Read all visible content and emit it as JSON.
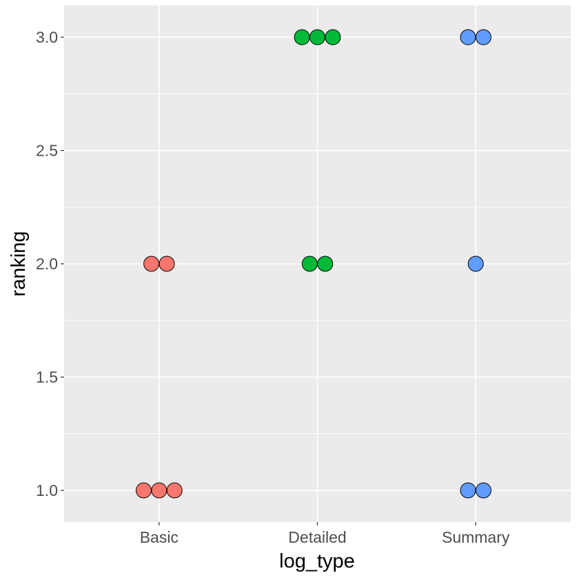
{
  "chart_data": {
    "type": "dotplot",
    "title": "",
    "xlabel": "log_type",
    "ylabel": "ranking",
    "categories": [
      "Basic",
      "Detailed",
      "Summary"
    ],
    "colors": {
      "Basic": "#F8766D",
      "Detailed": "#00BA38",
      "Summary": "#619CFF"
    },
    "ylim": [
      0.86,
      3.14
    ],
    "yticks": [
      1.0,
      1.5,
      2.0,
      2.5,
      3.0
    ],
    "ytick_labels": [
      "1.0",
      "1.5",
      "2.0",
      "2.5",
      "3.0"
    ],
    "grid": true,
    "points": [
      {
        "category": "Basic",
        "y": 1.0,
        "count": 3
      },
      {
        "category": "Basic",
        "y": 2.0,
        "count": 2
      },
      {
        "category": "Detailed",
        "y": 2.0,
        "count": 2
      },
      {
        "category": "Detailed",
        "y": 3.0,
        "count": 3
      },
      {
        "category": "Summary",
        "y": 1.0,
        "count": 2
      },
      {
        "category": "Summary",
        "y": 2.0,
        "count": 1
      },
      {
        "category": "Summary",
        "y": 3.0,
        "count": 2
      }
    ]
  }
}
